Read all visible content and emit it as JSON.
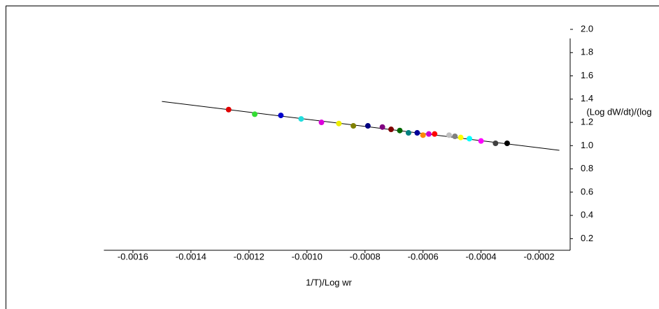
{
  "chart_data": {
    "type": "scatter",
    "x_label": "1/T)/Log wr",
    "y_label": "(Log dW/dt)/(log",
    "x": [
      -0.00127,
      -0.00118,
      -0.00109,
      -0.00102,
      -0.00095,
      -0.00089,
      -0.00084,
      -0.00079,
      -0.00074,
      -0.00071,
      -0.00068,
      -0.00065,
      -0.00062,
      -0.0006,
      -0.00058,
      -0.00056,
      -0.00051,
      -0.00049,
      -0.00047,
      -0.00044,
      -0.0004,
      -0.00035,
      -0.00031
    ],
    "values": [
      1.31,
      1.27,
      1.26,
      1.23,
      1.2,
      1.19,
      1.17,
      1.17,
      1.16,
      1.14,
      1.13,
      1.11,
      1.11,
      1.09,
      1.1,
      1.1,
      1.09,
      1.08,
      1.07,
      1.06,
      1.04,
      1.02,
      1.02
    ],
    "colors": [
      "#e00000",
      "#33dd33",
      "#0000cc",
      "#22dddd",
      "#dd00dd",
      "#eeee00",
      "#808000",
      "#000080",
      "#800080",
      "#800000",
      "#006600",
      "#008080",
      "#000099",
      "#ff8800",
      "#cc00cc",
      "#ff0000",
      "#c0c0c0",
      "#808080",
      "#ffff00",
      "#00ffff",
      "#ff00ff",
      "#404040",
      "#000000"
    ],
    "fit_line": {
      "x": [
        -0.0015,
        -0.00013
      ],
      "y": [
        1.38,
        0.96
      ]
    },
    "xlim": [
      -0.0017,
      -0.0001
    ],
    "xticks": [
      -0.0016,
      -0.0014,
      {
        "value": -0.001,
        "label": "-0.0010"
      },
      -0.0012,
      -0.0008,
      -0.0006,
      -0.0004,
      -0.0002
    ],
    "ylim": [
      0.1,
      2.0
    ],
    "yticks": [
      0.2,
      0.4,
      0.6,
      0.8,
      {
        "value": 1,
        "label": "1.0"
      },
      1.2,
      1.4,
      1.6,
      1.8,
      {
        "value": 2,
        "label": "2.0"
      }
    ]
  }
}
